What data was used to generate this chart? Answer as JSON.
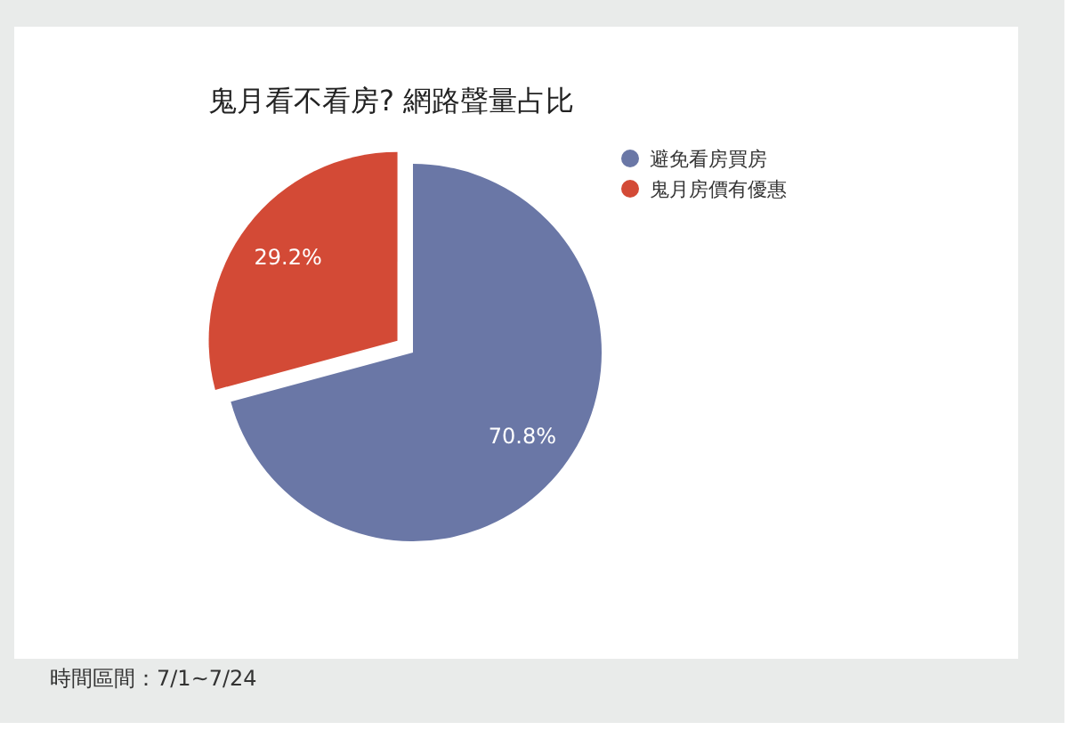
{
  "chart_data": {
    "type": "pie",
    "title": "鬼月看不看房? 網路聲量占比",
    "categories": [
      "避免看房買房",
      "鬼月房價有優惠"
    ],
    "values": [
      70.8,
      29.2
    ],
    "colors": [
      "#6a77a6",
      "#d34a36"
    ],
    "value_labels": [
      "70.8%",
      "29.2%"
    ],
    "legend": "top right",
    "annotations": [
      "時間區間：7/1~7/24"
    ]
  }
}
